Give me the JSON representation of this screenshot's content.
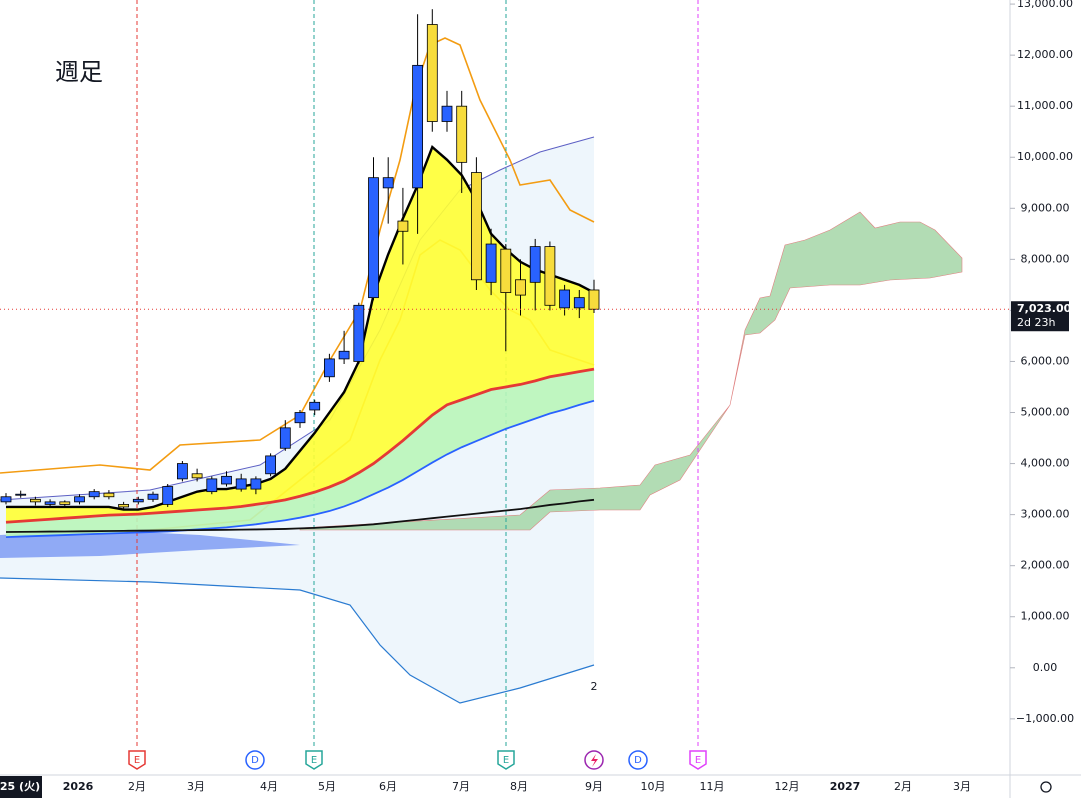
{
  "chart_data": {
    "type": "candlestick",
    "title": "週足",
    "x_labels": [
      "25 (火)",
      "2026",
      "2月",
      "3月",
      "4月",
      "5月",
      "6月",
      "7月",
      "8月",
      "9月",
      "10月",
      "11月",
      "12月",
      "2027",
      "2月",
      "3月"
    ],
    "open": [
      3250,
      3380,
      3300,
      3200,
      3250,
      3250,
      3350,
      3420,
      3200,
      3250,
      3300,
      3200,
      3700,
      3800,
      3450,
      3600,
      3500,
      3500,
      3800,
      4300,
      4800,
      5050,
      5700,
      6050,
      6000,
      7250,
      9400,
      8750,
      9400,
      12600,
      10700,
      11000,
      9700,
      7550,
      8200,
      7600,
      7550,
      8250,
      7050,
      7050,
      7400
    ],
    "high": [
      3420,
      3470,
      3350,
      3300,
      3280,
      3400,
      3500,
      3480,
      3250,
      3350,
      3450,
      3600,
      4050,
      3900,
      3750,
      3850,
      3800,
      3750,
      4200,
      4850,
      5050,
      5250,
      6150,
      6600,
      7150,
      10000,
      10000,
      9400,
      12800,
      12900,
      11300,
      11300,
      10000,
      8600,
      8300,
      8000,
      8400,
      8350,
      7500,
      7400,
      7600
    ],
    "low": [
      3200,
      3330,
      3180,
      3150,
      3150,
      3200,
      3300,
      3300,
      3100,
      3200,
      3250,
      3150,
      3650,
      3650,
      3400,
      3550,
      3450,
      3400,
      3750,
      4250,
      4700,
      4950,
      5600,
      5950,
      5950,
      7200,
      8700,
      7900,
      8500,
      10500,
      10500,
      9300,
      7400,
      7300,
      6200,
      6900,
      7000,
      7000,
      6900,
      6850,
      6950
    ],
    "close": [
      3350,
      3400,
      3250,
      3250,
      3200,
      3350,
      3450,
      3350,
      3150,
      3300,
      3400,
      3550,
      4000,
      3720,
      3700,
      3750,
      3700,
      3700,
      4150,
      4700,
      5000,
      5200,
      6050,
      6200,
      7100,
      9600,
      9600,
      8550,
      11800,
      10700,
      11000,
      9900,
      7600,
      8300,
      7350,
      7300,
      8250,
      7100,
      7400,
      7250,
      7023
    ],
    "up_color": "#2962ff",
    "down_color": "#f7dc3c",
    "series": [
      {
        "color": "#000000",
        "values": [
          3150,
          3150,
          3150,
          3150,
          3150,
          3150,
          3150,
          3150,
          3100,
          3100,
          3150,
          3250,
          3350,
          3450,
          3500,
          3500,
          3550,
          3600,
          3700,
          3900,
          4250,
          4600,
          5000,
          5400,
          6000,
          7300,
          8100,
          8800,
          9450,
          10200,
          9950,
          9650,
          9150,
          8500,
          8200,
          7950,
          7800,
          7700,
          7600,
          7500,
          7350
        ]
      },
      {
        "color": "#e53935",
        "values": [
          2850,
          2870,
          2890,
          2910,
          2930,
          2950,
          2970,
          2990,
          3000,
          3010,
          3030,
          3050,
          3070,
          3090,
          3110,
          3130,
          3160,
          3200,
          3240,
          3290,
          3360,
          3440,
          3540,
          3660,
          3820,
          4000,
          4220,
          4450,
          4700,
          4950,
          5150,
          5250,
          5350,
          5450,
          5500,
          5550,
          5620,
          5700,
          5750,
          5800,
          5850
        ]
      },
      {
        "color": "#2962ff",
        "values": [
          2560,
          2570,
          2580,
          2590,
          2600,
          2610,
          2620,
          2630,
          2640,
          2650,
          2660,
          2670,
          2690,
          2710,
          2730,
          2750,
          2780,
          2810,
          2850,
          2890,
          2940,
          3000,
          3070,
          3160,
          3270,
          3400,
          3530,
          3680,
          3850,
          4020,
          4180,
          4320,
          4440,
          4560,
          4680,
          4780,
          4880,
          4980,
          5060,
          5150,
          5230
        ]
      },
      {
        "color": "#111111",
        "values": [
          2660,
          2662,
          2665,
          2668,
          2670,
          2673,
          2676,
          2679,
          2682,
          2685,
          2688,
          2691,
          2694,
          2697,
          2700,
          2703,
          2706,
          2710,
          2715,
          2720,
          2730,
          2740,
          2755,
          2770,
          2790,
          2810,
          2840,
          2870,
          2900,
          2930,
          2960,
          2990,
          3020,
          3050,
          3080,
          3110,
          3150,
          3190,
          3220,
          3260,
          3290
        ]
      }
    ],
    "ylim": [
      -2100,
      13080
    ],
    "yticks": [
      {
        "value": 13000,
        "label": "13,000.00"
      },
      {
        "value": 12000,
        "label": "12,000.00"
      },
      {
        "value": 11000,
        "label": "11,000.00"
      },
      {
        "value": 10000,
        "label": "10,000.00"
      },
      {
        "value": 9000,
        "label": "9,000.00"
      },
      {
        "value": 8000,
        "label": "8,000.00"
      },
      {
        "value": 7000,
        "label": "7,000.00"
      },
      {
        "value": 6000,
        "label": "6,000.00"
      },
      {
        "value": 5000,
        "label": "5,000.00"
      },
      {
        "value": 4000,
        "label": "4,000.00"
      },
      {
        "value": 3000,
        "label": "3,000.00"
      },
      {
        "value": 2000,
        "label": "2,000.00"
      },
      {
        "value": 1000,
        "label": "1,000.00"
      },
      {
        "value": 0,
        "label": "0.00"
      },
      {
        "value": -1000,
        "label": "−1,000.00"
      }
    ],
    "last_price": {
      "value": 7023,
      "label": "7,023.00"
    },
    "countdown": "2d 23h",
    "pane_label": "2",
    "events": [
      "E",
      "D",
      "E",
      "E",
      "D",
      "E"
    ]
  }
}
